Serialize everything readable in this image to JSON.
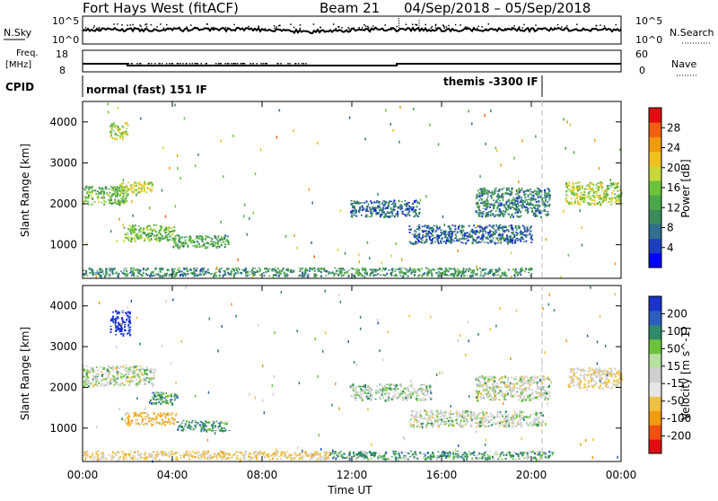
{
  "header": {
    "station": "Fort Hays West (fitACF)",
    "beam": "Beam 21",
    "date_range": "04/Sep/2018 – 05/Sep/2018"
  },
  "noise_panel": {
    "left_label": "N.Sky",
    "right_label": "N.Search",
    "left_ticks": [
      "10^5",
      "10^0"
    ],
    "right_ticks": [
      "10^5",
      "10^0"
    ]
  },
  "freq_panel": {
    "left_label_top": "Freq.",
    "left_label_bottom": "[MHz]",
    "left_ticks": [
      "18",
      "8"
    ],
    "right_label": "Nave",
    "right_ticks": [
      "60",
      "0"
    ]
  },
  "cpid_panel": {
    "label": "CPID",
    "mode_left": "normal (fast) 151 IF",
    "mode_right": "themis -3300 IF"
  },
  "time_axis": {
    "label": "Time UT",
    "ticks": [
      "00:00",
      "04:00",
      "08:00",
      "12:00",
      "16:00",
      "20:00",
      "00:00"
    ]
  },
  "range_axis": {
    "label": "Slant Range [km]",
    "ticks": [
      "1000",
      "2000",
      "3000",
      "4000"
    ]
  },
  "colors": {
    "power_scale": [
      "#0000ff",
      "#1a3fbf",
      "#2f6f8f",
      "#3b8a5a",
      "#4aa84a",
      "#6cc33c",
      "#c8d83a",
      "#f0c020",
      "#f09a10",
      "#f06010",
      "#e01010"
    ],
    "velocity_scale": [
      "#1a33cc",
      "#2a5fbf",
      "#2f8a6a",
      "#6cc33c",
      "#b8e0a0",
      "#cfcfcf",
      "#e6e6e6",
      "#f0c040",
      "#f09a10",
      "#f05010",
      "#e01010"
    ]
  },
  "chart_data": [
    {
      "type": "heatmap",
      "title": "",
      "xlabel": "Time UT",
      "ylabel": "Slant Range [km]",
      "xlim": [
        0,
        24
      ],
      "ylim": [
        180,
        4500
      ],
      "colorbar": {
        "label": "Power [dB]",
        "ticks": [
          "4",
          "8",
          "12",
          "16",
          "20",
          "24",
          "28"
        ],
        "range": [
          0,
          30
        ]
      },
      "regions": [
        {
          "t": [
            0.0,
            2.0
          ],
          "r": [
            2000,
            2450
          ],
          "level": 13
        },
        {
          "t": [
            1.2,
            2.0
          ],
          "r": [
            3600,
            4000
          ],
          "level": 17
        },
        {
          "t": [
            1.6,
            3.1
          ],
          "r": [
            2300,
            2550
          ],
          "level": 18
        },
        {
          "t": [
            1.8,
            4.1
          ],
          "r": [
            1100,
            1500
          ],
          "level": 14
        },
        {
          "t": [
            4.0,
            6.5
          ],
          "r": [
            950,
            1250
          ],
          "level": 12
        },
        {
          "t": [
            0.0,
            11.0
          ],
          "r": [
            250,
            450
          ],
          "level": 9
        },
        {
          "t": [
            11.9,
            15.0
          ],
          "r": [
            1700,
            2100
          ],
          "level": 6
        },
        {
          "t": [
            14.5,
            20.0
          ],
          "r": [
            1050,
            1500
          ],
          "level": 6
        },
        {
          "t": [
            17.5,
            20.8
          ],
          "r": [
            1700,
            2400
          ],
          "level": 8
        },
        {
          "t": [
            21.5,
            24.0
          ],
          "r": [
            2000,
            2550
          ],
          "level": 17
        },
        {
          "t": [
            11.0,
            20.0
          ],
          "r": [
            250,
            450
          ],
          "level": 10
        }
      ]
    },
    {
      "type": "heatmap",
      "title": "",
      "xlabel": "Time UT",
      "ylabel": "Slant Range [km]",
      "xlim": [
        0,
        24
      ],
      "ylim": [
        180,
        4500
      ],
      "colorbar": {
        "label": "Velocity [m s^-1]",
        "ticks": [
          "200",
          "100",
          "50",
          "15",
          "-15",
          "-50",
          "-100",
          "-200"
        ]
      },
      "regions": [
        {
          "t": [
            0.0,
            3.2
          ],
          "r": [
            2050,
            2550
          ],
          "velocity": 0
        },
        {
          "t": [
            1.2,
            2.1
          ],
          "r": [
            3300,
            3900
          ],
          "velocity": 200
        },
        {
          "t": [
            1.8,
            4.2
          ],
          "r": [
            1100,
            1400
          ],
          "velocity": -60
        },
        {
          "t": [
            3.0,
            4.2
          ],
          "r": [
            1600,
            1900
          ],
          "velocity": 50
        },
        {
          "t": [
            4.2,
            6.5
          ],
          "r": [
            950,
            1200
          ],
          "velocity": 40
        },
        {
          "t": [
            0.0,
            11.0
          ],
          "r": [
            250,
            450
          ],
          "velocity": -40
        },
        {
          "t": [
            11.9,
            15.5
          ],
          "r": [
            1700,
            2100
          ],
          "velocity": 10
        },
        {
          "t": [
            14.5,
            20.5
          ],
          "r": [
            1050,
            1450
          ],
          "velocity": 0
        },
        {
          "t": [
            17.5,
            20.8
          ],
          "r": [
            1700,
            2300
          ],
          "velocity": 0
        },
        {
          "t": [
            21.6,
            24.0
          ],
          "r": [
            2000,
            2500
          ],
          "velocity": -30
        },
        {
          "t": [
            11.0,
            21.0
          ],
          "r": [
            250,
            450
          ],
          "velocity": 40
        }
      ]
    }
  ]
}
